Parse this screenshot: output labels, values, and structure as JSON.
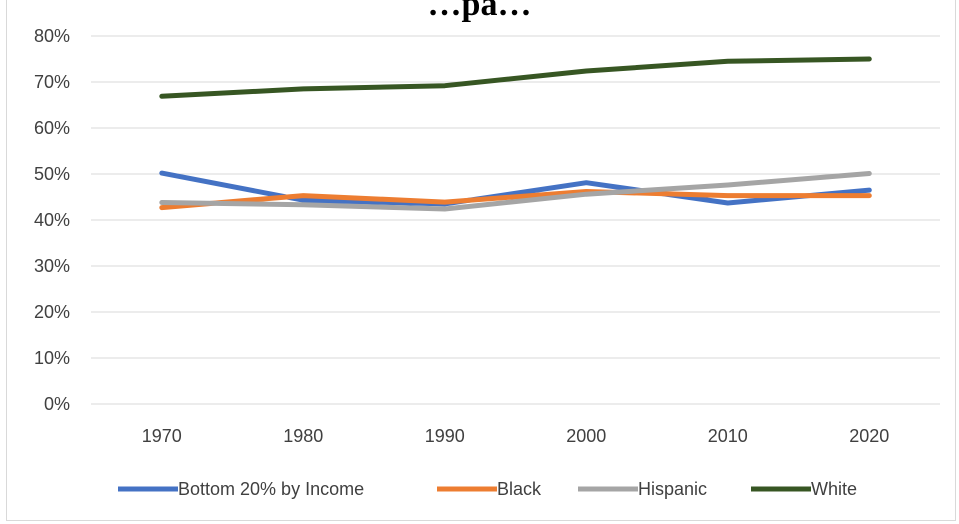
{
  "chart_data": {
    "type": "line",
    "title": "…pa…",
    "categories": [
      "1970",
      "1980",
      "1990",
      "2000",
      "2010",
      "2020"
    ],
    "ylim": [
      0,
      80
    ],
    "y_ticks": [
      "0%",
      "10%",
      "20%",
      "30%",
      "40%",
      "50%",
      "60%",
      "70%",
      "80%"
    ],
    "grid": true,
    "legend_position": "bottom",
    "series": [
      {
        "name": "Bottom 20% by Income",
        "color": "#4472c4",
        "values": [
          50.2,
          44.3,
          43.5,
          48.1,
          43.7,
          46.5
        ]
      },
      {
        "name": "Black",
        "color": "#ed7d31",
        "values": [
          42.7,
          45.3,
          43.9,
          46.2,
          45.3,
          45.3
        ]
      },
      {
        "name": "Hispanic",
        "color": "#a5a5a5",
        "values": [
          43.8,
          43.3,
          42.4,
          45.6,
          47.6,
          50.1
        ]
      },
      {
        "name": "White",
        "color": "#375623",
        "values": [
          66.9,
          68.5,
          69.2,
          72.4,
          74.5,
          75.0
        ]
      }
    ]
  }
}
